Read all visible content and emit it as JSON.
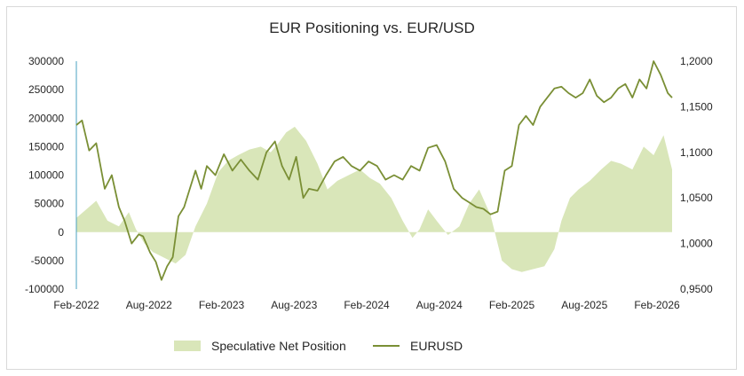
{
  "chart_data": {
    "type": "line",
    "title": "EUR Positioning vs. EUR/USD",
    "x_ticks": [
      "Feb-2022",
      "Aug-2022",
      "Feb-2023",
      "Aug-2023",
      "Feb-2024",
      "Aug-2024",
      "Feb-2025",
      "Aug-2025",
      "Feb-2026"
    ],
    "y_left": {
      "ylim": [
        -100000,
        300000
      ],
      "tick_labels": [
        "300000",
        "250000",
        "200000",
        "150000",
        "100000",
        "50000",
        "0",
        "-50000",
        "-100000"
      ]
    },
    "y_right": {
      "ylim": [
        0.95,
        1.2
      ],
      "tick_labels": [
        "1,2000",
        "1,1500",
        "1,1000",
        "1,0500",
        "1,0000",
        "0,9500"
      ]
    },
    "legend_position": "bottom",
    "grid": false,
    "colors": {
      "area": "#d9e6b9",
      "line": "#7a8f35",
      "left_axis_line": "#4aa0c0"
    },
    "series": [
      {
        "name": "Speculative Net Position",
        "kind": "area",
        "axis": "left",
        "x": [
          2022.08,
          2022.15,
          2022.22,
          2022.3,
          2022.38,
          2022.45,
          2022.5,
          2022.56,
          2022.62,
          2022.7,
          2022.78,
          2022.85,
          2022.92,
          2023.0,
          2023.08,
          2023.15,
          2023.22,
          2023.3,
          2023.38,
          2023.45,
          2023.5,
          2023.56,
          2023.62,
          2023.7,
          2023.78,
          2023.85,
          2023.92,
          2024.0,
          2024.08,
          2024.15,
          2024.22,
          2024.3,
          2024.38,
          2024.45,
          2024.5,
          2024.56,
          2024.62,
          2024.7,
          2024.78,
          2024.85,
          2024.92,
          2025.0,
          2025.08,
          2025.15,
          2025.22,
          2025.3,
          2025.38,
          2025.45,
          2025.5,
          2025.56,
          2025.62,
          2025.7,
          2025.78,
          2025.85,
          2025.92,
          2026.0,
          2026.08,
          2026.15,
          2026.22,
          2026.28
        ],
        "values": [
          25000,
          40000,
          55000,
          20000,
          10000,
          35000,
          5000,
          -20000,
          -35000,
          -45000,
          -55000,
          -40000,
          10000,
          50000,
          105000,
          125000,
          135000,
          145000,
          150000,
          140000,
          155000,
          175000,
          185000,
          160000,
          120000,
          75000,
          90000,
          100000,
          110000,
          95000,
          85000,
          60000,
          20000,
          -10000,
          5000,
          40000,
          20000,
          -5000,
          10000,
          50000,
          75000,
          30000,
          -50000,
          -65000,
          -70000,
          -65000,
          -60000,
          -30000,
          20000,
          60000,
          75000,
          90000,
          110000,
          125000,
          120000,
          110000,
          150000,
          135000,
          170000,
          110000
        ]
      },
      {
        "name": "EURUSD",
        "kind": "line",
        "axis": "right",
        "x": [
          2022.08,
          2022.12,
          2022.17,
          2022.22,
          2022.28,
          2022.33,
          2022.38,
          2022.42,
          2022.47,
          2022.52,
          2022.55,
          2022.6,
          2022.64,
          2022.68,
          2022.72,
          2022.76,
          2022.8,
          2022.84,
          2022.88,
          2022.92,
          2022.96,
          2023.0,
          2023.06,
          2023.12,
          2023.18,
          2023.24,
          2023.3,
          2023.36,
          2023.42,
          2023.48,
          2023.53,
          2023.58,
          2023.63,
          2023.68,
          2023.72,
          2023.78,
          2023.84,
          2023.9,
          2023.96,
          2024.02,
          2024.08,
          2024.14,
          2024.2,
          2024.26,
          2024.32,
          2024.38,
          2024.44,
          2024.5,
          2024.56,
          2024.62,
          2024.68,
          2024.74,
          2024.8,
          2024.85,
          2024.9,
          2024.95,
          2025.0,
          2025.05,
          2025.1,
          2025.15,
          2025.2,
          2025.25,
          2025.3,
          2025.35,
          2025.4,
          2025.45,
          2025.5,
          2025.55,
          2025.6,
          2025.65,
          2025.7,
          2025.75,
          2025.8,
          2025.85,
          2025.9,
          2025.95,
          2026.0,
          2026.05,
          2026.1,
          2026.15,
          2026.2,
          2026.25,
          2026.28
        ],
        "values": [
          1.13,
          1.135,
          1.102,
          1.11,
          1.06,
          1.075,
          1.04,
          1.025,
          1.0,
          1.01,
          1.008,
          0.99,
          0.98,
          0.96,
          0.975,
          0.985,
          1.03,
          1.04,
          1.06,
          1.08,
          1.06,
          1.085,
          1.075,
          1.098,
          1.08,
          1.092,
          1.08,
          1.07,
          1.1,
          1.112,
          1.085,
          1.07,
          1.095,
          1.05,
          1.06,
          1.058,
          1.075,
          1.09,
          1.095,
          1.085,
          1.08,
          1.09,
          1.085,
          1.07,
          1.075,
          1.07,
          1.085,
          1.08,
          1.105,
          1.108,
          1.09,
          1.06,
          1.05,
          1.045,
          1.04,
          1.038,
          1.032,
          1.035,
          1.08,
          1.085,
          1.13,
          1.14,
          1.13,
          1.15,
          1.16,
          1.17,
          1.172,
          1.165,
          1.16,
          1.165,
          1.18,
          1.162,
          1.155,
          1.16,
          1.17,
          1.175,
          1.16,
          1.18,
          1.17,
          1.2,
          1.185,
          1.165,
          1.16
        ]
      }
    ]
  }
}
